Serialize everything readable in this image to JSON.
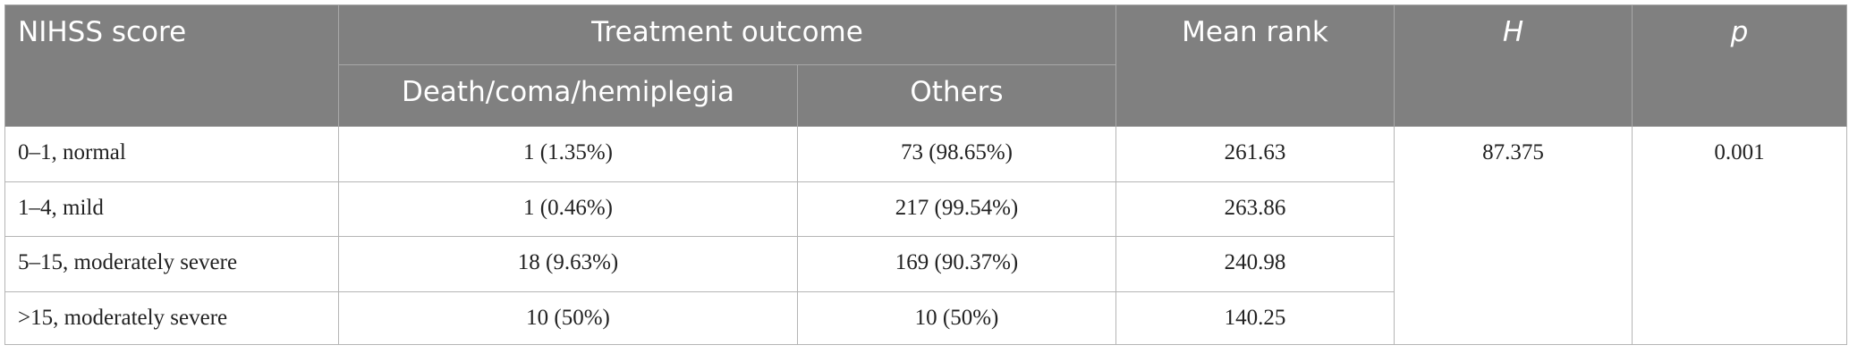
{
  "table": {
    "header": [
      "NIHSS score",
      "Treatment outcome",
      "Mean rank",
      "H",
      "p"
    ],
    "subheader": [
      "Death/coma/hemiplegia",
      "Others"
    ],
    "rows": [
      [
        "0–1, normal",
        "1 (1.35%)",
        "73 (98.65%)",
        "261.63"
      ],
      [
        "1–4, mild",
        "1 (0.46%)",
        "217 (99.54%)",
        "263.86"
      ],
      [
        "5–15, moderately severe",
        "18 (9.63%)",
        "169 (90.37%)",
        "240.98"
      ],
      [
        ">15, moderately severe",
        "10 (50%)",
        "10 (50%)",
        "140.25"
      ]
    ],
    "h_value": "87.375",
    "p_value": "0.001"
  }
}
